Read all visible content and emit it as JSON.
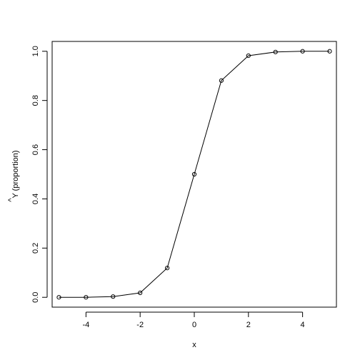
{
  "chart_data": {
    "type": "line",
    "markers": "open-circle",
    "title": "",
    "xlabel": "x",
    "ylabel": "Ŷ (proportion)",
    "ylabel_hat_glyph": "^",
    "ylabel_text": "Y (proportion)",
    "xlim": [
      -5.25,
      5.25
    ],
    "ylim": [
      -0.04,
      1.04
    ],
    "x_ticks": [
      -4,
      -2,
      0,
      2,
      4
    ],
    "x_tick_labels": [
      "-4",
      "-2",
      "0",
      "2",
      "4"
    ],
    "y_ticks": [
      0.0,
      0.2,
      0.4,
      0.6,
      0.8,
      1.0
    ],
    "y_tick_labels": [
      "0.0",
      "0.2",
      "0.4",
      "0.6",
      "0.8",
      "1.0"
    ],
    "grid": false,
    "legend": "none",
    "series": [
      {
        "x": [
          -5,
          -4,
          -3,
          -2,
          -1,
          0,
          1,
          2,
          3,
          4,
          5
        ],
        "values": [
          0.0,
          0.0,
          0.003,
          0.018,
          0.119,
          0.5,
          0.881,
          0.982,
          0.997,
          1.0,
          1.0
        ]
      }
    ]
  },
  "colors": {
    "line": "#000000",
    "marker": "#000000",
    "axis": "#000000",
    "background": "#ffffff"
  }
}
